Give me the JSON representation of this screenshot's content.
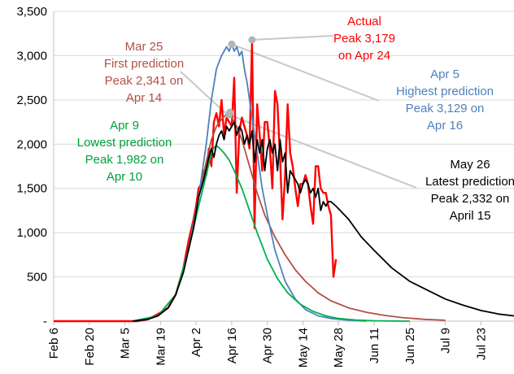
{
  "chart_data": {
    "type": "line",
    "title": "",
    "xlabel": "",
    "ylabel": "",
    "ylim": [
      0,
      3500
    ],
    "xlim": [
      "2020-02-06",
      "2020-08-05"
    ],
    "yticks": [
      0,
      500,
      1000,
      1500,
      2000,
      2500,
      3000,
      3500
    ],
    "ytick_labels": [
      "-",
      "500",
      "1,000",
      "1,500",
      "2,000",
      "2,500",
      "3,000",
      "3,500"
    ],
    "xticks": [
      {
        "date": "2020-02-06",
        "label": "Feb 6"
      },
      {
        "date": "2020-02-20",
        "label": "Feb 20"
      },
      {
        "date": "2020-03-05",
        "label": "Mar 5"
      },
      {
        "date": "2020-03-19",
        "label": "Mar 19"
      },
      {
        "date": "2020-04-02",
        "label": "Apr 2"
      },
      {
        "date": "2020-04-16",
        "label": "Apr 16"
      },
      {
        "date": "2020-04-30",
        "label": "Apr 30"
      },
      {
        "date": "2020-05-14",
        "label": "May 14"
      },
      {
        "date": "2020-05-28",
        "label": "May 28"
      },
      {
        "date": "2020-06-11",
        "label": "Jun 11"
      },
      {
        "date": "2020-06-25",
        "label": "Jun 25"
      },
      {
        "date": "2020-07-09",
        "label": "Jul 9"
      },
      {
        "date": "2020-07-23",
        "label": "Jul 23"
      }
    ],
    "grid": "horizontal",
    "legend": "none",
    "series": [
      {
        "color": "#ff0000",
        "x": [
          "2020-02-06",
          "2020-03-10",
          "2020-03-14",
          "2020-03-18",
          "2020-03-22",
          "2020-03-25",
          "2020-03-28",
          "2020-03-30",
          "2020-04-01",
          "2020-04-02",
          "2020-04-03",
          "2020-04-04",
          "2020-04-05",
          "2020-04-06",
          "2020-04-07",
          "2020-04-08",
          "2020-04-09",
          "2020-04-10",
          "2020-04-11",
          "2020-04-12",
          "2020-04-13",
          "2020-04-14",
          "2020-04-15",
          "2020-04-16",
          "2020-04-17",
          "2020-04-18",
          "2020-04-19",
          "2020-04-20",
          "2020-04-21",
          "2020-04-22",
          "2020-04-23",
          "2020-04-24",
          "2020-04-25",
          "2020-04-26",
          "2020-04-27",
          "2020-04-28",
          "2020-04-29",
          "2020-04-30",
          "2020-05-01",
          "2020-05-02",
          "2020-05-03",
          "2020-05-04",
          "2020-05-05",
          "2020-05-06",
          "2020-05-07",
          "2020-05-08",
          "2020-05-09",
          "2020-05-10",
          "2020-05-11",
          "2020-05-12",
          "2020-05-13",
          "2020-05-14",
          "2020-05-15",
          "2020-05-16",
          "2020-05-17",
          "2020-05-18",
          "2020-05-19",
          "2020-05-20",
          "2020-05-21",
          "2020-05-22",
          "2020-05-23",
          "2020-05-24",
          "2020-05-25",
          "2020-05-26",
          "2020-05-27"
        ],
        "y": [
          0,
          0,
          20,
          80,
          150,
          300,
          600,
          900,
          1150,
          1300,
          1500,
          1550,
          1700,
          1650,
          1950,
          1750,
          2250,
          2350,
          2200,
          2500,
          2100,
          2300,
          2250,
          2200,
          2750,
          1450,
          2150,
          2300,
          2200,
          2100,
          1950,
          3150,
          1050,
          2450,
          2100,
          1700,
          2250,
          2250,
          1950,
          1500,
          2600,
          2450,
          1850,
          1150,
          1650,
          2450,
          1900,
          1750,
          1500,
          1300,
          1550,
          1550,
          1650,
          1550,
          1300,
          1100,
          1750,
          1750,
          1500,
          1450,
          1450,
          1300,
          1200,
          500,
          700
        ]
      },
      {
        "color": "#000000",
        "x": [
          "2020-03-08",
          "2020-03-14",
          "2020-03-18",
          "2020-03-22",
          "2020-03-25",
          "2020-03-28",
          "2020-03-30",
          "2020-04-01",
          "2020-04-03",
          "2020-04-05",
          "2020-04-07",
          "2020-04-08",
          "2020-04-09",
          "2020-04-10",
          "2020-04-11",
          "2020-04-12",
          "2020-04-13",
          "2020-04-14",
          "2020-04-15",
          "2020-04-16",
          "2020-04-17",
          "2020-04-18",
          "2020-04-19",
          "2020-04-20",
          "2020-04-21",
          "2020-04-22",
          "2020-04-23",
          "2020-04-24",
          "2020-04-25",
          "2020-04-26",
          "2020-04-27",
          "2020-04-28",
          "2020-04-29",
          "2020-04-30",
          "2020-05-01",
          "2020-05-02",
          "2020-05-03",
          "2020-05-04",
          "2020-05-05",
          "2020-05-06",
          "2020-05-07",
          "2020-05-08",
          "2020-05-09",
          "2020-05-10",
          "2020-05-11",
          "2020-05-12",
          "2020-05-13",
          "2020-05-14",
          "2020-05-15",
          "2020-05-16",
          "2020-05-17",
          "2020-05-18",
          "2020-05-19",
          "2020-05-20",
          "2020-05-21",
          "2020-05-22",
          "2020-05-23",
          "2020-05-24",
          "2020-05-25",
          "2020-05-27",
          "2020-06-01",
          "2020-06-06",
          "2020-06-11",
          "2020-06-18",
          "2020-06-25",
          "2020-07-02",
          "2020-07-09",
          "2020-07-16",
          "2020-07-23",
          "2020-07-30",
          "2020-08-05"
        ],
        "y": [
          0,
          20,
          60,
          150,
          300,
          550,
          800,
          1050,
          1400,
          1600,
          1850,
          1950,
          1850,
          2000,
          2100,
          2150,
          2050,
          2200,
          2150,
          2200,
          2250,
          2100,
          2200,
          2150,
          2000,
          2100,
          2000,
          2150,
          1800,
          2050,
          1900,
          2050,
          1700,
          1950,
          2050,
          1900,
          2000,
          1700,
          2050,
          1800,
          1900,
          1450,
          1700,
          1650,
          1600,
          1550,
          1450,
          1550,
          1600,
          1550,
          1450,
          1500,
          1400,
          1500,
          1250,
          1350,
          1300,
          1350,
          1350,
          1300,
          1150,
          950,
          800,
          600,
          450,
          350,
          250,
          180,
          120,
          80,
          60
        ]
      },
      {
        "color": "#b35045",
        "x": [
          "2020-03-08",
          "2020-03-18",
          "2020-03-25",
          "2020-03-30",
          "2020-04-03",
          "2020-04-06",
          "2020-04-08",
          "2020-04-10",
          "2020-04-12",
          "2020-04-14",
          "2020-04-16",
          "2020-04-18",
          "2020-04-20",
          "2020-04-22",
          "2020-04-24",
          "2020-04-26",
          "2020-04-29",
          "2020-05-03",
          "2020-05-07",
          "2020-05-11",
          "2020-05-15",
          "2020-05-20",
          "2020-05-25",
          "2020-06-01",
          "2020-06-08",
          "2020-06-15",
          "2020-06-22",
          "2020-07-01",
          "2020-07-09"
        ],
        "y": [
          0,
          60,
          300,
          800,
          1400,
          1800,
          2050,
          2200,
          2280,
          2341,
          2300,
          2200,
          2050,
          1850,
          1650,
          1450,
          1200,
          950,
          750,
          580,
          450,
          320,
          230,
          150,
          100,
          65,
          40,
          20,
          10
        ]
      },
      {
        "color": "#4f81bd",
        "x": [
          "2020-03-08",
          "2020-03-18",
          "2020-03-25",
          "2020-03-30",
          "2020-04-03",
          "2020-04-06",
          "2020-04-08",
          "2020-04-10",
          "2020-04-12",
          "2020-04-14",
          "2020-04-15",
          "2020-04-16",
          "2020-04-17",
          "2020-04-18",
          "2020-04-19",
          "2020-04-20",
          "2020-04-21",
          "2020-04-22",
          "2020-04-23",
          "2020-04-24",
          "2020-04-26",
          "2020-04-28",
          "2020-04-30",
          "2020-05-03",
          "2020-05-07",
          "2020-05-11",
          "2020-05-15",
          "2020-05-20",
          "2020-05-25",
          "2020-06-01",
          "2020-06-08"
        ],
        "y": [
          0,
          60,
          300,
          800,
          1400,
          2000,
          2500,
          2850,
          3000,
          3100,
          3050,
          3129,
          3050,
          3100,
          3000,
          3050,
          2850,
          2700,
          2500,
          2300,
          1900,
          1500,
          1200,
          800,
          450,
          250,
          130,
          60,
          30,
          10,
          0
        ]
      },
      {
        "color": "#00b050",
        "x": [
          "2020-03-08",
          "2020-03-18",
          "2020-03-25",
          "2020-03-30",
          "2020-04-03",
          "2020-04-06",
          "2020-04-08",
          "2020-04-09",
          "2020-04-10",
          "2020-04-11",
          "2020-04-13",
          "2020-04-15",
          "2020-04-17",
          "2020-04-20",
          "2020-04-23",
          "2020-04-26",
          "2020-04-30",
          "2020-05-04",
          "2020-05-08",
          "2020-05-13",
          "2020-05-18",
          "2020-05-23",
          "2020-05-28",
          "2020-06-04",
          "2020-06-11",
          "2020-06-18",
          "2020-06-25"
        ],
        "y": [
          0,
          60,
          300,
          800,
          1300,
          1650,
          1900,
          1960,
          1982,
          1960,
          1900,
          1820,
          1700,
          1500,
          1250,
          1000,
          700,
          480,
          320,
          190,
          110,
          60,
          30,
          12,
          5,
          2,
          0
        ]
      }
    ],
    "annotations": [
      {
        "lines": [
          "Actual",
          "Peak 3,179",
          "on Apr 24"
        ],
        "color": "#ff0000",
        "point": {
          "x": "2020-04-24",
          "y": 3179
        }
      },
      {
        "lines": [
          "Mar 25",
          "First prediction",
          "Peak 2,341 on",
          "Apr 14"
        ],
        "color": "#b35045",
        "point": {
          "x": "2020-04-14",
          "y": 2341
        }
      },
      {
        "lines": [
          "Apr 5",
          "Highest prediction",
          "Peak 3,129 on",
          "Apr 16"
        ],
        "color": "#4f81bd",
        "point": {
          "x": "2020-04-16",
          "y": 3129
        }
      },
      {
        "lines": [
          "Apr 9",
          "Lowest prediction",
          "Peak 1,982 on",
          "Apr 10"
        ],
        "color": "#00a03c",
        "point": {
          "x": "2020-04-10",
          "y": 1982
        }
      },
      {
        "lines": [
          "May 26",
          "Latest prediction",
          "Peak 2,332 on",
          "April 15"
        ],
        "color": "#000000",
        "point": {
          "x": "2020-04-15",
          "y": 2332
        }
      }
    ]
  }
}
